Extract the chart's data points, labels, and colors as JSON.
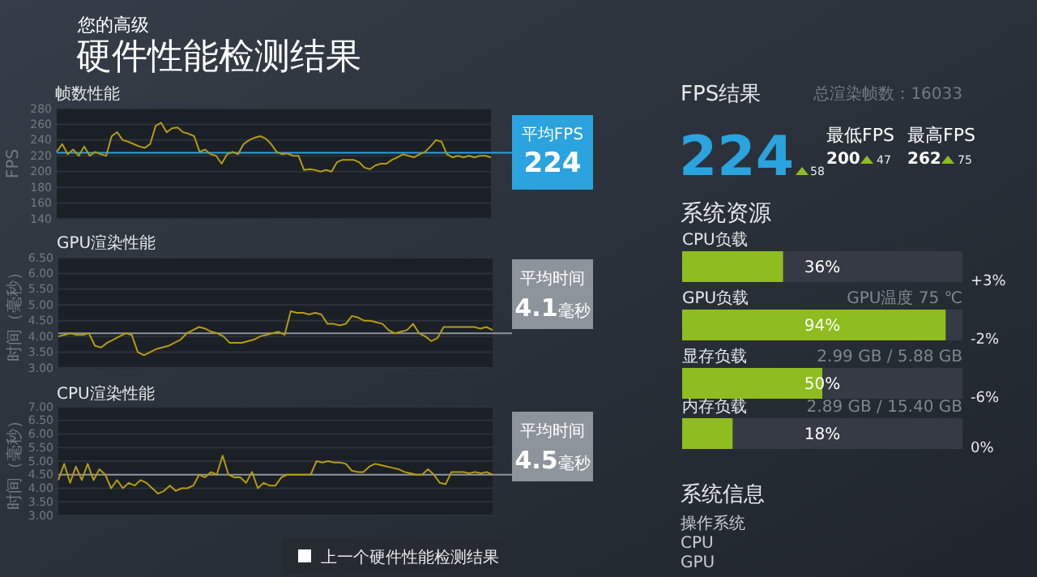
{
  "chart_data": [
    {
      "type": "other",
      "subtitle": "您的高级",
      "title": "硬件性能检测结果",
      "annotations": [
        "上一个硬件性能检测结果"
      ]
    },
    {
      "type": "line",
      "title": "帧数性能",
      "ylabel": "FPS",
      "color": "#b39b14",
      "grid": "y",
      "tick_labels": "y",
      "ylim": [
        140,
        280
      ],
      "yticks": [
        140,
        160,
        180,
        200,
        220,
        240,
        260,
        280
      ],
      "categories": [
        null,
        null,
        null,
        null,
        null,
        null,
        null,
        null,
        null,
        null,
        null,
        null,
        null,
        null,
        null,
        null,
        null,
        null,
        null,
        null,
        null,
        null,
        null,
        null,
        null,
        null,
        null,
        null,
        null,
        null,
        null,
        null,
        null,
        null,
        null,
        null,
        null,
        null,
        null,
        null,
        null,
        null,
        null,
        null,
        null,
        null,
        null,
        null,
        null,
        null,
        null,
        null,
        null,
        null,
        null,
        null,
        null,
        null,
        null,
        null,
        null,
        null,
        null,
        null,
        null,
        null,
        null,
        null,
        null,
        null,
        null,
        null,
        null,
        null,
        null,
        null,
        null,
        null,
        null,
        null
      ],
      "values": [
        225,
        235,
        222,
        228,
        220,
        232,
        220,
        225,
        222,
        220,
        245,
        250,
        240,
        238,
        235,
        232,
        230,
        235,
        258,
        262,
        250,
        255,
        256,
        250,
        248,
        245,
        225,
        228,
        222,
        220,
        210,
        222,
        225,
        222,
        235,
        240,
        243,
        245,
        242,
        235,
        225,
        222,
        223,
        220,
        220,
        202,
        203,
        202,
        200,
        202,
        200,
        212,
        215,
        215,
        215,
        212,
        205,
        203,
        208,
        210,
        210,
        215,
        218,
        222,
        220,
        218,
        222,
        225,
        232,
        240,
        238,
        222,
        218,
        220,
        218,
        220,
        218,
        220,
        220,
        218
      ],
      "ref_lines": [
        {
          "axis": "y",
          "value": 224,
          "label": "平均FPS\n224",
          "color": "#2aa3de"
        }
      ]
    },
    {
      "type": "other",
      "title": "FPS结果",
      "subtitle": "总渲染帧数：16033",
      "annotations": [
        "224",
        "58",
        "最低FPS",
        "最高FPS",
        "200",
        "47",
        "262",
        "75"
      ]
    },
    {
      "type": "line",
      "title": "GPU渲染性能",
      "ylabel": "时间（毫秒）",
      "color": "#b39b14",
      "grid": "y",
      "tick_labels": "y",
      "ylim": [
        3,
        6.5
      ],
      "yticks": [
        {
          "value": 3,
          "label": "3.00"
        },
        {
          "value": 3.5,
          "label": "3.50"
        },
        {
          "value": 4,
          "label": "4.00"
        },
        {
          "value": 4.5,
          "label": "4.50"
        },
        {
          "value": 5,
          "label": "5.00"
        },
        {
          "value": 5.5,
          "label": "5.50"
        },
        {
          "value": 6,
          "label": "6.00"
        },
        {
          "value": 6.5,
          "label": "6.50"
        }
      ],
      "categories": [
        null,
        null,
        null,
        null,
        null,
        null,
        null,
        null,
        null,
        null,
        null,
        null,
        null,
        null,
        null,
        null,
        null,
        null,
        null,
        null,
        null,
        null,
        null,
        null,
        null,
        null,
        null,
        null,
        null,
        null,
        null,
        null,
        null,
        null,
        null,
        null,
        null,
        null,
        null,
        null,
        null,
        null,
        null,
        null,
        null,
        null,
        null,
        null,
        null,
        null,
        null,
        null,
        null,
        null,
        null,
        null,
        null,
        null,
        null,
        null,
        null,
        null,
        null,
        null,
        null,
        null,
        null,
        null,
        null,
        null,
        null,
        null
      ],
      "values": [
        4.0,
        4.05,
        4.1,
        4.05,
        4.05,
        4.1,
        3.7,
        3.65,
        3.8,
        3.9,
        4.0,
        4.1,
        4.05,
        3.5,
        3.4,
        3.5,
        3.6,
        3.65,
        3.7,
        3.8,
        3.9,
        4.1,
        4.2,
        4.3,
        4.25,
        4.15,
        4.1,
        4.0,
        3.8,
        3.8,
        3.8,
        3.85,
        3.9,
        4.0,
        4.05,
        4.1,
        4.15,
        4.05,
        4.8,
        4.75,
        4.75,
        4.7,
        4.75,
        4.7,
        4.4,
        4.4,
        4.35,
        4.4,
        4.65,
        4.6,
        4.5,
        4.5,
        4.45,
        4.4,
        4.2,
        4.1,
        4.15,
        4.2,
        4.4,
        4.1,
        4.0,
        3.85,
        3.95,
        4.3,
        4.3,
        4.3,
        4.3,
        4.3,
        4.3,
        4.25,
        4.3,
        4.2
      ],
      "ref_lines": [
        {
          "axis": "y",
          "value": 4.1,
          "label": "平均时间\n4.1毫秒",
          "color": "#8e949c"
        }
      ]
    },
    {
      "type": "bar",
      "orientation": "horizontal",
      "title": "系统资源",
      "categories": [
        "CPU负载",
        "GPU负载",
        "显存负载",
        "内存负载"
      ],
      "values": [
        36,
        94,
        50,
        18
      ],
      "value_labels": [
        "36%",
        "94%",
        "50%",
        "18%"
      ],
      "color": "#8fbc1e",
      "xlim": [
        0,
        100
      ],
      "tick_labels": false,
      "annotations": [
        "+3%",
        "GPU温度 75 ℃",
        "-2%",
        "2.99 GB / 5.88 GB",
        "-6%",
        "2.89 GB / 15.40 GB",
        "0%"
      ]
    },
    {
      "type": "line",
      "title": "CPU渲染性能",
      "ylabel": "时间（毫秒）",
      "color": "#b39b14",
      "grid": "y",
      "tick_labels": "y",
      "ylim": [
        3,
        7
      ],
      "yticks": [
        {
          "value": 3,
          "label": "3.00"
        },
        {
          "value": 3.5,
          "label": "3.50"
        },
        {
          "value": 4,
          "label": "4.00"
        },
        {
          "value": 4.5,
          "label": "4.50"
        },
        {
          "value": 5,
          "label": "5.00"
        },
        {
          "value": 5.5,
          "label": "5.50"
        },
        {
          "value": 6,
          "label": "6.00"
        },
        {
          "value": 6.5,
          "label": "6.50"
        },
        {
          "value": 7,
          "label": "7.00"
        }
      ],
      "categories": [
        null,
        null,
        null,
        null,
        null,
        null,
        null,
        null,
        null,
        null,
        null,
        null,
        null,
        null,
        null,
        null,
        null,
        null,
        null,
        null,
        null,
        null,
        null,
        null,
        null,
        null,
        null,
        null,
        null,
        null,
        null,
        null,
        null,
        null,
        null,
        null,
        null,
        null,
        null,
        null,
        null,
        null,
        null,
        null,
        null,
        null,
        null,
        null,
        null,
        null,
        null,
        null,
        null,
        null,
        null,
        null,
        null,
        null,
        null,
        null,
        null,
        null,
        null,
        null,
        null,
        null,
        null,
        null,
        null,
        null,
        null,
        null,
        null,
        null,
        null
      ],
      "values": [
        4.3,
        4.9,
        4.2,
        4.8,
        4.3,
        4.9,
        4.3,
        4.7,
        4.5,
        4.0,
        4.3,
        4.0,
        4.2,
        4.1,
        4.3,
        4.2,
        4.0,
        3.8,
        3.9,
        4.1,
        3.9,
        4.0,
        4.0,
        4.1,
        4.5,
        4.4,
        4.6,
        4.5,
        5.2,
        4.5,
        4.4,
        4.4,
        4.2,
        4.6,
        4.0,
        4.2,
        4.1,
        4.1,
        4.4,
        4.5,
        4.5,
        4.5,
        4.5,
        4.5,
        5.0,
        4.95,
        5.0,
        4.95,
        4.95,
        4.9,
        4.65,
        4.6,
        4.6,
        4.8,
        4.9,
        4.85,
        4.8,
        4.75,
        4.7,
        4.6,
        4.55,
        4.5,
        4.5,
        4.7,
        4.5,
        4.2,
        4.15,
        4.6,
        4.6,
        4.6,
        4.55,
        4.6,
        4.55,
        4.6,
        4.5
      ],
      "ref_lines": [
        {
          "axis": "y",
          "value": 4.5,
          "label": "平均时间\n4.5毫秒",
          "color": "#8e949c"
        }
      ]
    },
    {
      "type": "other",
      "title": "系统信息",
      "annotations": [
        "操作系统",
        "CPU",
        "GPU"
      ]
    }
  ]
}
